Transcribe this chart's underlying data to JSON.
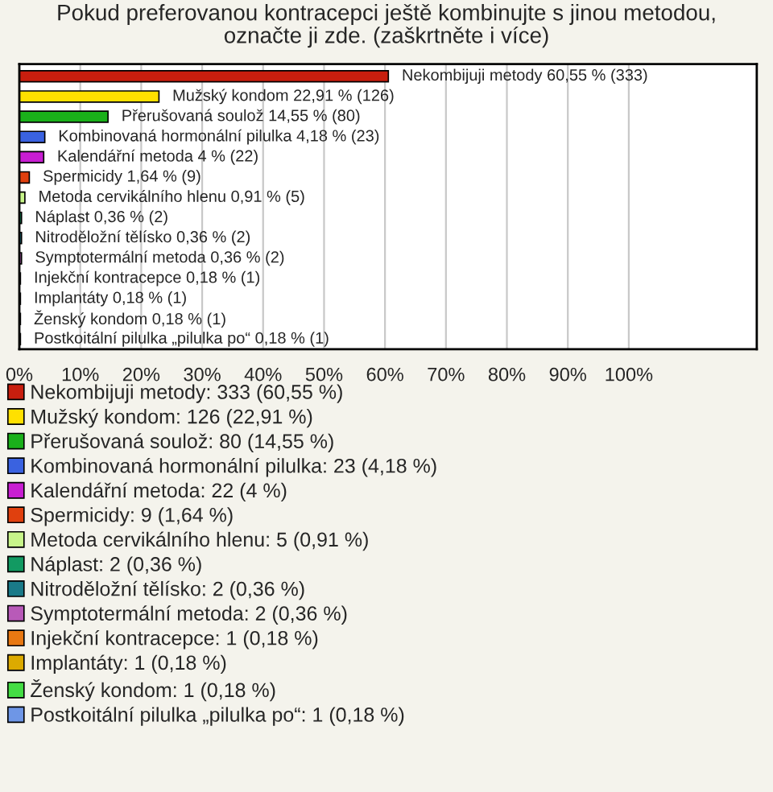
{
  "chart_data": {
    "type": "bar",
    "orientation": "horizontal",
    "title": "Pokud preferovanou kontracepci ještě kombinujte s jinou metodou,\noznačte ji zde. (zaškrtněte i více)",
    "categories": [
      null,
      null,
      null,
      null,
      null,
      null,
      null,
      null,
      null,
      null,
      null,
      null,
      null,
      null
    ],
    "xlim": [
      0,
      121
    ],
    "xticks": [
      {
        "value": 0,
        "label": "0%"
      },
      {
        "value": 10,
        "label": "10%"
      },
      {
        "value": 20,
        "label": "20%"
      },
      {
        "value": 30,
        "label": "30%"
      },
      {
        "value": 40,
        "label": "40%"
      },
      {
        "value": 50,
        "label": "50%"
      },
      {
        "value": 60,
        "label": "60%"
      },
      {
        "value": 70,
        "label": "70%"
      },
      {
        "value": 80,
        "label": "80%"
      },
      {
        "value": 90,
        "label": "90%"
      },
      {
        "value": 100,
        "label": "100%"
      }
    ],
    "grid": "x",
    "legend": "bottom",
    "series": [
      {
        "name": "Nekombijuji metody: 333 (60,55 %)",
        "color": "#c81e0e",
        "values": [
          60.55,
          null,
          null,
          null,
          null,
          null,
          null,
          null,
          null,
          null,
          null,
          null,
          null,
          null
        ],
        "value_labels": [
          "Nekombijuji metody 60,55 % (333)",
          null,
          null,
          null,
          null,
          null,
          null,
          null,
          null,
          null,
          null,
          null,
          null,
          null
        ]
      },
      {
        "name": "Mužský kondom: 126 (22,91 %)",
        "color": "#ffe000",
        "values": [
          null,
          22.91,
          null,
          null,
          null,
          null,
          null,
          null,
          null,
          null,
          null,
          null,
          null,
          null
        ],
        "value_labels": [
          null,
          "Mužský kondom 22,91 % (126)",
          null,
          null,
          null,
          null,
          null,
          null,
          null,
          null,
          null,
          null,
          null,
          null
        ]
      },
      {
        "name": "Přerušovaná soulož: 80 (14,55 %)",
        "color": "#1ab01a",
        "values": [
          null,
          null,
          14.55,
          null,
          null,
          null,
          null,
          null,
          null,
          null,
          null,
          null,
          null,
          null
        ],
        "value_labels": [
          null,
          null,
          "Přerušovaná soulož 14,55 % (80)",
          null,
          null,
          null,
          null,
          null,
          null,
          null,
          null,
          null,
          null,
          null
        ]
      },
      {
        "name": "Kombinovaná hormonální pilulka: 23 (4,18 %)",
        "color": "#3a62e0",
        "values": [
          null,
          null,
          null,
          4.18,
          null,
          null,
          null,
          null,
          null,
          null,
          null,
          null,
          null,
          null
        ],
        "value_labels": [
          null,
          null,
          null,
          "Kombinovaná hormonální pilulka 4,18 % (23)",
          null,
          null,
          null,
          null,
          null,
          null,
          null,
          null,
          null,
          null
        ]
      },
      {
        "name": "Kalendářní metoda: 22 (4 %)",
        "color": "#c81ed2",
        "values": [
          null,
          null,
          null,
          null,
          4,
          null,
          null,
          null,
          null,
          null,
          null,
          null,
          null,
          null
        ],
        "value_labels": [
          null,
          null,
          null,
          null,
          "Kalendářní metoda 4 % (22)",
          null,
          null,
          null,
          null,
          null,
          null,
          null,
          null,
          null
        ]
      },
      {
        "name": "Spermicidy: 9 (1,64 %)",
        "color": "#e0400e",
        "values": [
          null,
          null,
          null,
          null,
          null,
          1.64,
          null,
          null,
          null,
          null,
          null,
          null,
          null,
          null
        ],
        "value_labels": [
          null,
          null,
          null,
          null,
          null,
          "Spermicidy 1,64 % (9)",
          null,
          null,
          null,
          null,
          null,
          null,
          null,
          null
        ]
      },
      {
        "name": "Metoda cervikálního hlenu: 5 (0,91 %)",
        "color": "#c8f58a",
        "values": [
          null,
          null,
          null,
          null,
          null,
          null,
          0.91,
          null,
          null,
          null,
          null,
          null,
          null,
          null
        ],
        "value_labels": [
          null,
          null,
          null,
          null,
          null,
          null,
          "Metoda cervikálního hlenu 0,91 % (5)",
          null,
          null,
          null,
          null,
          null,
          null,
          null
        ]
      },
      {
        "name": "Náplast: 2 (0,36 %)",
        "color": "#129a62",
        "values": [
          null,
          null,
          null,
          null,
          null,
          null,
          null,
          0.36,
          null,
          null,
          null,
          null,
          null,
          null
        ],
        "value_labels": [
          null,
          null,
          null,
          null,
          null,
          null,
          null,
          "Náplast 0,36 % (2)",
          null,
          null,
          null,
          null,
          null,
          null
        ]
      },
      {
        "name": "Nitroděložní tělísko: 2 (0,36 %)",
        "color": "#1a7a88",
        "values": [
          null,
          null,
          null,
          null,
          null,
          null,
          null,
          null,
          0.36,
          null,
          null,
          null,
          null,
          null
        ],
        "value_labels": [
          null,
          null,
          null,
          null,
          null,
          null,
          null,
          null,
          "Nitroděložní tělísko 0,36 % (2)",
          null,
          null,
          null,
          null,
          null
        ]
      },
      {
        "name": "Symptotermální metoda: 2 (0,36 %)",
        "color": "#b85ab8",
        "values": [
          null,
          null,
          null,
          null,
          null,
          null,
          null,
          null,
          null,
          0.36,
          null,
          null,
          null,
          null
        ],
        "value_labels": [
          null,
          null,
          null,
          null,
          null,
          null,
          null,
          null,
          null,
          "Symptotermální metoda 0,36 % (2)",
          null,
          null,
          null,
          null
        ]
      },
      {
        "name": "Injekční kontracepce: 1 (0,18 %)",
        "color": "#e87812",
        "values": [
          null,
          null,
          null,
          null,
          null,
          null,
          null,
          null,
          null,
          null,
          0.18,
          null,
          null,
          null
        ],
        "value_labels": [
          null,
          null,
          null,
          null,
          null,
          null,
          null,
          null,
          null,
          null,
          "Injekční kontracepce 0,18 % (1)",
          null,
          null,
          null
        ]
      },
      {
        "name": "Implantáty: 1 (0,18 %)",
        "color": "#dcaa00",
        "values": [
          null,
          null,
          null,
          null,
          null,
          null,
          null,
          null,
          null,
          null,
          null,
          0.18,
          null,
          null
        ],
        "value_labels": [
          null,
          null,
          null,
          null,
          null,
          null,
          null,
          null,
          null,
          null,
          null,
          "Implantáty 0,18 % (1)",
          null,
          null
        ]
      },
      {
        "name": "Ženský kondom: 1 (0,18 %)",
        "color": "#44dd44",
        "values": [
          null,
          null,
          null,
          null,
          null,
          null,
          null,
          null,
          null,
          null,
          null,
          null,
          0.18,
          null
        ],
        "value_labels": [
          null,
          null,
          null,
          null,
          null,
          null,
          null,
          null,
          null,
          null,
          null,
          null,
          "Ženský kondom 0,18 % (1)",
          null
        ]
      },
      {
        "name": "Postkoitální pilulka „pilulka po“: 1 (0,18 %)",
        "color": "#6e96e6",
        "values": [
          null,
          null,
          null,
          null,
          null,
          null,
          null,
          null,
          null,
          null,
          null,
          null,
          null,
          0.18
        ],
        "value_labels": [
          null,
          null,
          null,
          null,
          null,
          null,
          null,
          null,
          null,
          null,
          null,
          null,
          null,
          "Postkoitální pilulka „pilulka po“ 0,18 % (1)"
        ]
      }
    ]
  }
}
